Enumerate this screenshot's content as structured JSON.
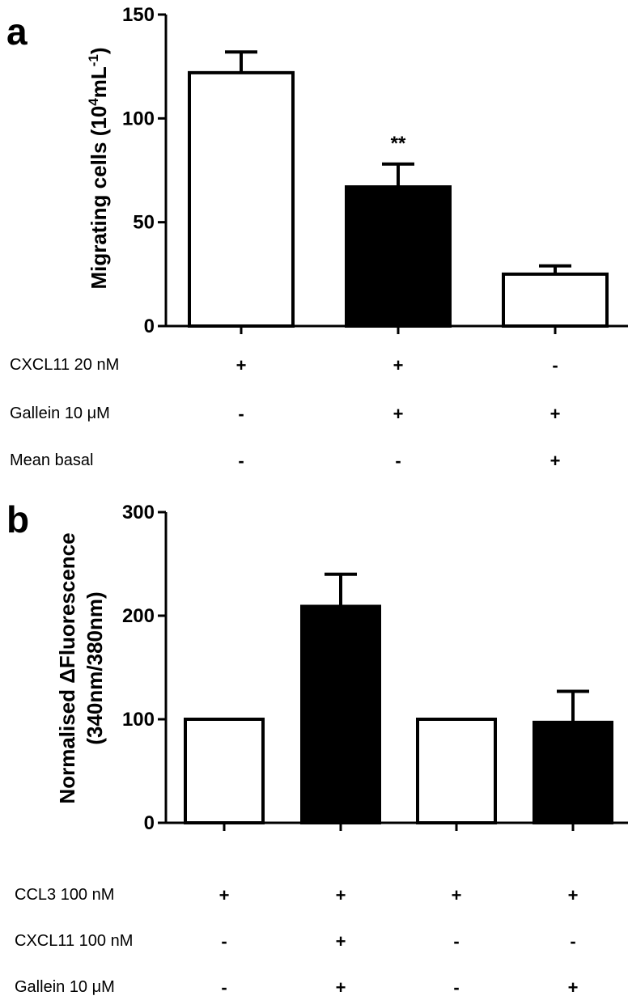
{
  "chart_data": [
    {
      "type": "bar",
      "panel": "a",
      "ylabel": "Migrating cells (10",
      "ylabel_exp1": "4",
      "ylabel_mid": "mL",
      "ylabel_exp2": "-1",
      "ylabel_end": ")",
      "ylim": [
        0,
        150
      ],
      "yticks": [
        0,
        50,
        100,
        150
      ],
      "bars": [
        {
          "value": 122,
          "error": 10,
          "fill": "white",
          "annotation": ""
        },
        {
          "value": 67,
          "error": 11,
          "fill": "black",
          "annotation": "**"
        },
        {
          "value": 25,
          "error": 4,
          "fill": "white",
          "annotation": ""
        }
      ],
      "conditions": [
        {
          "label": "CXCL11 20 nM",
          "signs": [
            "+",
            "+",
            "-"
          ]
        },
        {
          "label": "Gallein 10 μM",
          "signs": [
            "-",
            "+",
            "+"
          ]
        },
        {
          "label": "Mean basal",
          "signs": [
            "-",
            "-",
            "+"
          ]
        }
      ]
    },
    {
      "type": "bar",
      "panel": "b",
      "ylabel": "Normalised ΔFluorescence",
      "ylabel2": "(340nm/380nm)",
      "ylim": [
        0,
        300
      ],
      "yticks": [
        0,
        100,
        200,
        300
      ],
      "bars": [
        {
          "value": 100,
          "error": 0,
          "fill": "white",
          "annotation": ""
        },
        {
          "value": 209,
          "error": 31,
          "fill": "black",
          "annotation": ""
        },
        {
          "value": 100,
          "error": 0,
          "fill": "white",
          "annotation": ""
        },
        {
          "value": 97,
          "error": 30,
          "fill": "black",
          "annotation": ""
        }
      ],
      "conditions": [
        {
          "label": "CCL3 100 nM",
          "signs": [
            "+",
            "+",
            "+",
            "+"
          ]
        },
        {
          "label": "CXCL11 100 nM",
          "signs": [
            "-",
            "+",
            "-",
            "-"
          ]
        },
        {
          "label": "Gallein 10 μM",
          "signs": [
            "-",
            "+",
            "-",
            "+"
          ]
        }
      ]
    }
  ]
}
